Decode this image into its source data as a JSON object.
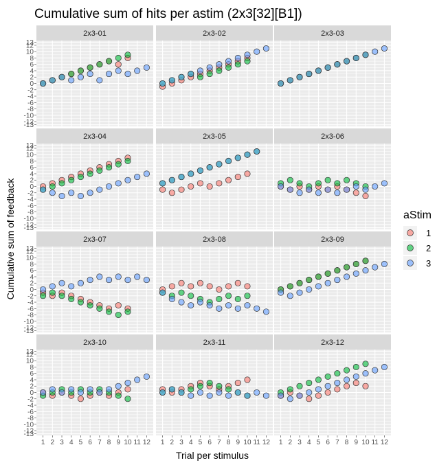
{
  "chart_data": {
    "type": "scatter",
    "title": "Cumulative sum of hits per astim (2x3[32][B1])",
    "xlabel": "Trial per stimulus",
    "ylabel": "Cumulative sum of feedback",
    "x_ticks": [
      1,
      2,
      3,
      4,
      5,
      6,
      7,
      8,
      9,
      10,
      11,
      12
    ],
    "y_ticks": [
      -13,
      -12,
      -10,
      -8,
      -6,
      -4,
      -2,
      0,
      2,
      4,
      6,
      8,
      10,
      12,
      13
    ],
    "xlim": [
      0.3,
      12.7
    ],
    "ylim": [
      -13.5,
      13.5
    ],
    "legend": {
      "title": "aStim",
      "position": "right",
      "entries": [
        {
          "label": "1",
          "color": "#F8766D"
        },
        {
          "label": "2",
          "color": "#00BA38"
        },
        {
          "label": "3",
          "color": "#619CFF"
        }
      ]
    },
    "panels": [
      {
        "label": "2x3-01",
        "series": [
          {
            "name": "1",
            "x": [
              1,
              2,
              3,
              4,
              5,
              6,
              7,
              8,
              9,
              10
            ],
            "y": [
              0,
              1,
              2,
              3,
              4,
              5,
              6,
              7,
              6,
              8
            ]
          },
          {
            "name": "2",
            "x": [
              1,
              2,
              3,
              4,
              5,
              6,
              7,
              8,
              9,
              10
            ],
            "y": [
              0,
              1,
              2,
              3,
              4,
              5,
              6,
              7,
              8,
              9
            ]
          },
          {
            "name": "3",
            "x": [
              1,
              2,
              3,
              4,
              5,
              6,
              7,
              8,
              9,
              10,
              11,
              12
            ],
            "y": [
              0,
              1,
              2,
              1,
              2,
              3,
              1,
              3,
              4,
              3,
              4,
              5
            ]
          }
        ]
      },
      {
        "label": "2x3-02",
        "series": [
          {
            "name": "1",
            "x": [
              1,
              2,
              3,
              4,
              5,
              6,
              7,
              8,
              9,
              10
            ],
            "y": [
              -1,
              0,
              1,
              2,
              3,
              4,
              5,
              6,
              7,
              8
            ]
          },
          {
            "name": "2",
            "x": [
              1,
              2,
              3,
              4,
              5,
              6,
              7,
              8,
              9,
              10
            ],
            "y": [
              0,
              1,
              2,
              3,
              2,
              3,
              4,
              5,
              6,
              7
            ]
          },
          {
            "name": "3",
            "x": [
              1,
              2,
              3,
              4,
              5,
              6,
              7,
              8,
              9,
              10,
              11,
              12
            ],
            "y": [
              0,
              1,
              2,
              3,
              4,
              5,
              6,
              7,
              8,
              9,
              10,
              11
            ]
          }
        ]
      },
      {
        "label": "2x3-03",
        "series": [
          {
            "name": "1",
            "x": [
              1,
              2,
              3,
              4,
              5,
              6,
              7,
              8,
              9,
              10
            ],
            "y": [
              0,
              1,
              2,
              3,
              4,
              5,
              6,
              7,
              8,
              9
            ]
          },
          {
            "name": "2",
            "x": [
              1,
              2,
              3,
              4,
              5,
              6,
              7,
              8,
              9,
              10
            ],
            "y": [
              0,
              1,
              2,
              3,
              4,
              5,
              6,
              7,
              8,
              9
            ]
          },
          {
            "name": "3",
            "x": [
              1,
              2,
              3,
              4,
              5,
              6,
              7,
              8,
              9,
              10,
              11,
              12
            ],
            "y": [
              0,
              1,
              2,
              3,
              4,
              5,
              6,
              7,
              8,
              9,
              10,
              11
            ]
          }
        ]
      },
      {
        "label": "2x3-04",
        "series": [
          {
            "name": "1",
            "x": [
              1,
              2,
              3,
              4,
              5,
              6,
              7,
              8,
              9,
              10
            ],
            "y": [
              0,
              1,
              2,
              3,
              4,
              5,
              6,
              7,
              8,
              9
            ]
          },
          {
            "name": "2",
            "x": [
              1,
              2,
              3,
              4,
              5,
              6,
              7,
              8,
              9,
              10
            ],
            "y": [
              -1,
              0,
              1,
              2,
              3,
              4,
              5,
              6,
              7,
              8
            ]
          },
          {
            "name": "3",
            "x": [
              1,
              2,
              3,
              4,
              5,
              6,
              7,
              8,
              9,
              10,
              11,
              12
            ],
            "y": [
              -1,
              -2,
              -3,
              -2,
              -3,
              -2,
              -1,
              0,
              1,
              2,
              3,
              4
            ]
          }
        ]
      },
      {
        "label": "2x3-05",
        "series": [
          {
            "name": "1",
            "x": [
              1,
              2,
              3,
              4,
              5,
              6,
              7,
              8,
              9,
              10
            ],
            "y": [
              -1,
              -2,
              -1,
              0,
              1,
              0,
              1,
              2,
              3,
              4
            ]
          },
          {
            "name": "2",
            "x": [
              1,
              2,
              3,
              4,
              5,
              6,
              7,
              8,
              9,
              10,
              11
            ],
            "y": [
              1,
              2,
              3,
              4,
              5,
              6,
              7,
              8,
              9,
              10,
              11
            ]
          },
          {
            "name": "3",
            "x": [
              1,
              2,
              3,
              4,
              5,
              6,
              7,
              8,
              9,
              10,
              11
            ],
            "y": [
              1,
              2,
              3,
              4,
              5,
              6,
              7,
              8,
              9,
              10,
              11
            ]
          }
        ]
      },
      {
        "label": "2x3-06",
        "series": [
          {
            "name": "1",
            "x": [
              1,
              2,
              3,
              4,
              5,
              6,
              7,
              8,
              9,
              10
            ],
            "y": [
              0,
              -1,
              0,
              -1,
              0,
              -1,
              0,
              -1,
              -2,
              -3
            ]
          },
          {
            "name": "2",
            "x": [
              1,
              2,
              3,
              4,
              5,
              6,
              7,
              8,
              9,
              10
            ],
            "y": [
              1,
              2,
              1,
              0,
              1,
              2,
              1,
              2,
              1,
              0
            ]
          },
          {
            "name": "3",
            "x": [
              1,
              2,
              3,
              4,
              5,
              6,
              7,
              8,
              9,
              10,
              11,
              12
            ],
            "y": [
              0,
              -1,
              -2,
              -1,
              -2,
              -1,
              -2,
              -1,
              0,
              -1,
              0,
              1
            ]
          }
        ]
      },
      {
        "label": "2x3-07",
        "series": [
          {
            "name": "1",
            "x": [
              1,
              2,
              3,
              4,
              5,
              6,
              7,
              8,
              9,
              10
            ],
            "y": [
              -1,
              -2,
              -1,
              -2,
              -3,
              -4,
              -5,
              -6,
              -5,
              -6
            ]
          },
          {
            "name": "2",
            "x": [
              1,
              2,
              3,
              4,
              5,
              6,
              7,
              8,
              9,
              10
            ],
            "y": [
              -2,
              -1,
              -2,
              -3,
              -4,
              -5,
              -6,
              -7,
              -8,
              -7
            ]
          },
          {
            "name": "3",
            "x": [
              1,
              2,
              3,
              4,
              5,
              6,
              7,
              8,
              9,
              10,
              11,
              12
            ],
            "y": [
              0,
              1,
              2,
              1,
              2,
              3,
              4,
              3,
              4,
              3,
              4,
              3
            ]
          }
        ]
      },
      {
        "label": "2x3-08",
        "series": [
          {
            "name": "1",
            "x": [
              1,
              2,
              3,
              4,
              5,
              6,
              7,
              8,
              9,
              10
            ],
            "y": [
              0,
              1,
              2,
              1,
              2,
              1,
              0,
              1,
              2,
              1
            ]
          },
          {
            "name": "2",
            "x": [
              1,
              2,
              3,
              4,
              5,
              6,
              7,
              8,
              9,
              10
            ],
            "y": [
              -1,
              -2,
              -1,
              -2,
              -3,
              -4,
              -3,
              -2,
              -3,
              -2
            ]
          },
          {
            "name": "3",
            "x": [
              1,
              2,
              3,
              4,
              5,
              6,
              7,
              8,
              9,
              10,
              11,
              12
            ],
            "y": [
              -1,
              -3,
              -4,
              -5,
              -4,
              -5,
              -6,
              -5,
              -6,
              -5,
              -6,
              -7
            ]
          }
        ]
      },
      {
        "label": "2x3-09",
        "series": [
          {
            "name": "1",
            "x": [
              1,
              2,
              3,
              4,
              5,
              6,
              7,
              8,
              9,
              10
            ],
            "y": [
              0,
              1,
              2,
              3,
              4,
              5,
              6,
              7,
              8,
              9
            ]
          },
          {
            "name": "2",
            "x": [
              1,
              2,
              3,
              4,
              5,
              6,
              7,
              8,
              9,
              10
            ],
            "y": [
              0,
              1,
              2,
              3,
              4,
              5,
              6,
              7,
              8,
              9
            ]
          },
          {
            "name": "3",
            "x": [
              1,
              2,
              3,
              4,
              5,
              6,
              7,
              8,
              9,
              10,
              11,
              12
            ],
            "y": [
              -1,
              -2,
              -1,
              0,
              1,
              2,
              3,
              4,
              5,
              6,
              7,
              8
            ]
          }
        ]
      },
      {
        "label": "2x3-10",
        "series": [
          {
            "name": "1",
            "x": [
              1,
              2,
              3,
              4,
              5,
              6,
              7,
              8,
              9,
              10
            ],
            "y": [
              0,
              -1,
              0,
              -1,
              -2,
              -1,
              0,
              -1,
              0,
              1
            ]
          },
          {
            "name": "2",
            "x": [
              1,
              2,
              3,
              4,
              5,
              6,
              7,
              8,
              9,
              10
            ],
            "y": [
              -1,
              0,
              1,
              0,
              1,
              0,
              1,
              0,
              -1,
              -2
            ]
          },
          {
            "name": "3",
            "x": [
              1,
              2,
              3,
              4,
              5,
              6,
              7,
              8,
              9,
              10,
              11,
              12
            ],
            "y": [
              0,
              1,
              0,
              1,
              0,
              1,
              0,
              1,
              2,
              3,
              4,
              5
            ]
          }
        ]
      },
      {
        "label": "2x3-11",
        "series": [
          {
            "name": "1",
            "x": [
              1,
              2,
              3,
              4,
              5,
              6,
              7,
              8,
              9,
              10
            ],
            "y": [
              1,
              0,
              1,
              2,
              3,
              2,
              1,
              2,
              3,
              4
            ]
          },
          {
            "name": "2",
            "x": [
              1,
              2,
              3,
              4,
              5,
              6,
              7,
              8,
              9,
              10
            ],
            "y": [
              0,
              1,
              0,
              1,
              2,
              3,
              2,
              1,
              0,
              -1
            ]
          },
          {
            "name": "3",
            "x": [
              1,
              2,
              3,
              4,
              5,
              6,
              7,
              8,
              9,
              10,
              11,
              12
            ],
            "y": [
              0,
              1,
              0,
              -1,
              0,
              -1,
              0,
              -1,
              0,
              -1,
              0,
              -1
            ]
          }
        ]
      },
      {
        "label": "2x3-12",
        "series": [
          {
            "name": "1",
            "x": [
              1,
              2,
              3,
              4,
              5,
              6,
              7,
              8,
              9,
              10
            ],
            "y": [
              -1,
              0,
              -1,
              -2,
              -1,
              0,
              1,
              2,
              3,
              2
            ]
          },
          {
            "name": "2",
            "x": [
              1,
              2,
              3,
              4,
              5,
              6,
              7,
              8,
              9,
              10
            ],
            "y": [
              0,
              1,
              2,
              3,
              4,
              5,
              6,
              7,
              8,
              9
            ]
          },
          {
            "name": "3",
            "x": [
              1,
              2,
              3,
              4,
              5,
              6,
              7,
              8,
              9,
              10,
              11,
              12
            ],
            "y": [
              -1,
              -2,
              -1,
              0,
              1,
              2,
              3,
              4,
              5,
              6,
              7,
              8
            ]
          }
        ]
      }
    ]
  }
}
